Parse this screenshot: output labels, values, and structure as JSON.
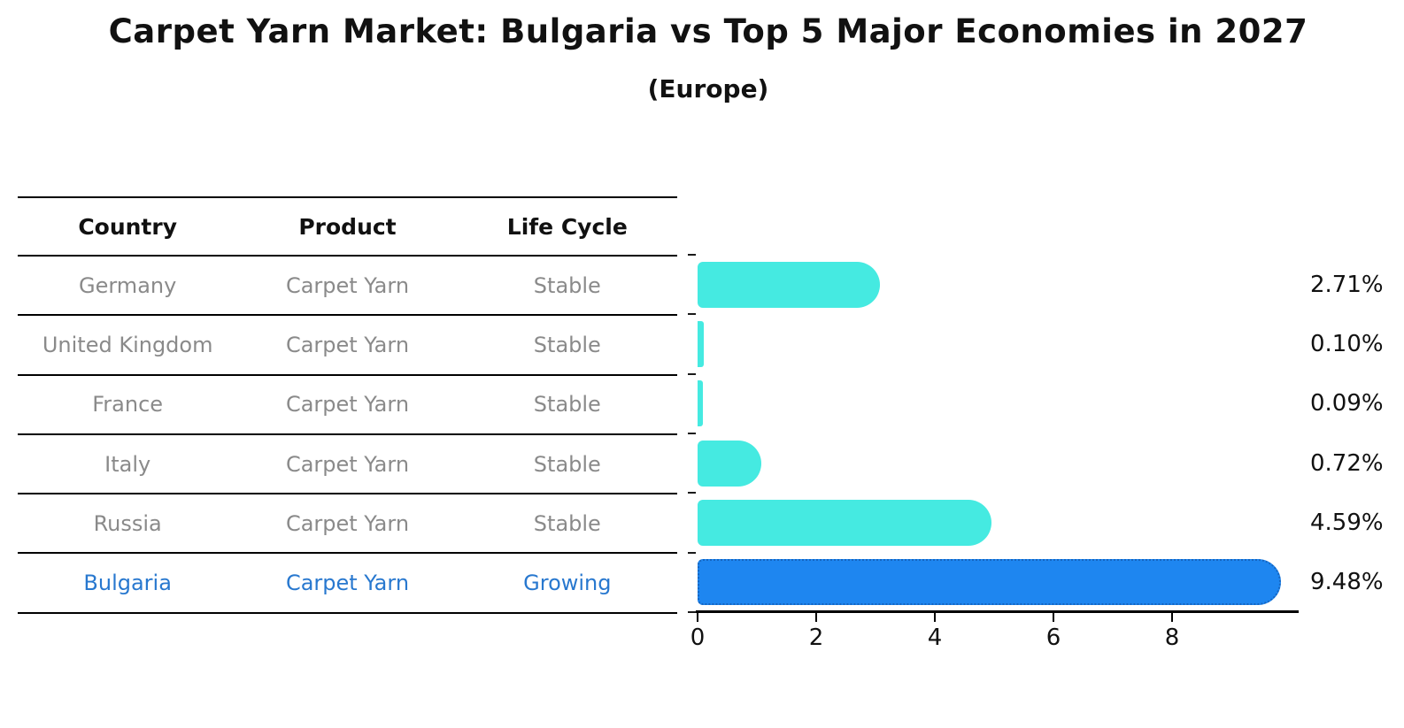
{
  "title": "Carpet Yarn Market: Bulgaria vs Top 5 Major Economies in 2027",
  "subtitle": "(Europe)",
  "table": {
    "headers": [
      "Country",
      "Product",
      "Life Cycle"
    ],
    "rows": [
      {
        "country": "Germany",
        "product": "Carpet Yarn",
        "life_cycle": "Stable"
      },
      {
        "country": "United Kingdom",
        "product": "Carpet Yarn",
        "life_cycle": "Stable"
      },
      {
        "country": "France",
        "product": "Carpet Yarn",
        "life_cycle": "Stable"
      },
      {
        "country": "Italy",
        "product": "Carpet Yarn",
        "life_cycle": "Stable"
      },
      {
        "country": "Russia",
        "product": "Carpet Yarn",
        "life_cycle": "Stable"
      },
      {
        "country": "Bulgaria",
        "product": "Carpet Yarn",
        "life_cycle": "Growing"
      }
    ]
  },
  "chart_data": {
    "type": "bar",
    "orientation": "horizontal",
    "title": "Carpet Yarn Market: Bulgaria vs Top 5 Major Economies in 2027 (Europe)",
    "categories": [
      "Germany",
      "United Kingdom",
      "France",
      "Italy",
      "Russia",
      "Bulgaria"
    ],
    "values": [
      2.71,
      0.1,
      0.09,
      0.72,
      4.59,
      9.48
    ],
    "value_labels": [
      "2.71%",
      "0.10%",
      "0.09%",
      "0.72%",
      "4.59%",
      "9.48%"
    ],
    "x_ticks": [
      "0",
      "2",
      "4",
      "6",
      "8"
    ],
    "xlim": [
      0,
      10.1
    ],
    "highlight_index": 5,
    "grid": false,
    "legend": false
  },
  "colors": {
    "bar_cyan": "#45EAE1",
    "bar_blue": "#1E86F0",
    "bar_blue_border": "#1565C0",
    "muted_text": "#8A8A8A",
    "highlight_text": "#2878CF",
    "axis": "#000000"
  }
}
